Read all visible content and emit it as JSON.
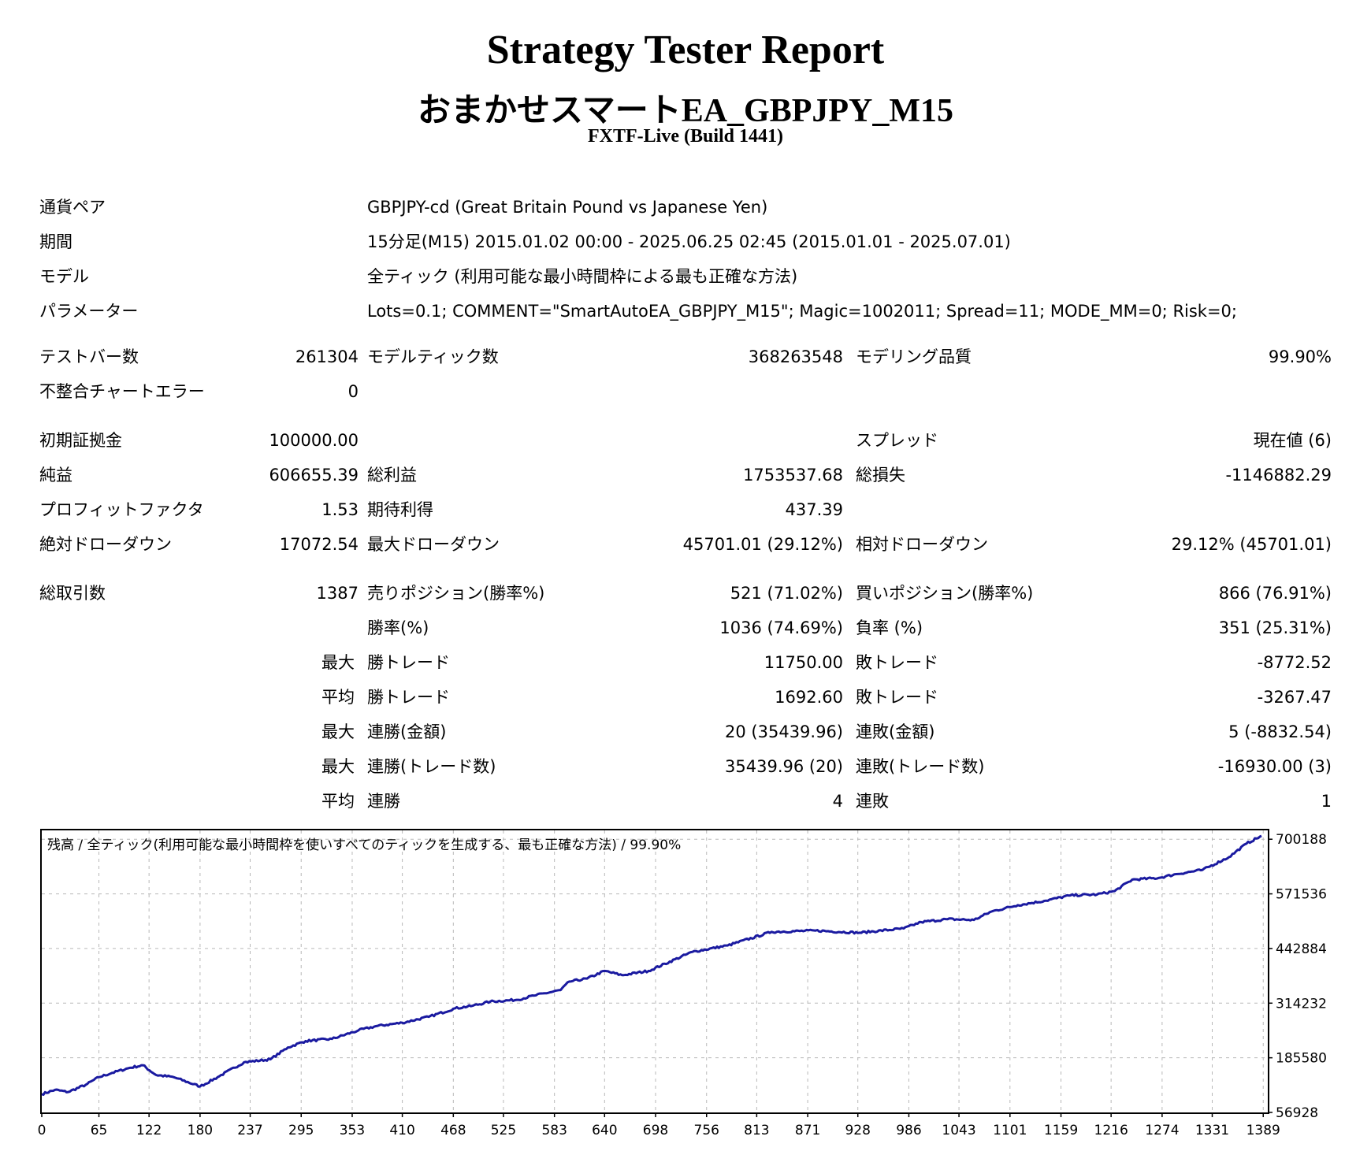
{
  "report": {
    "title": "Strategy Tester Report",
    "subtitle": "おまかせスマートEA_GBPJPY_M15",
    "server": "FXTF-Live (Build 1441)"
  },
  "info": [
    {
      "label": "通貨ペア",
      "value": "GBPJPY-cd (Great Britain Pound vs Japanese Yen)"
    },
    {
      "label": "期間",
      "value": "15分足(M15) 2015.01.02 00:00 - 2025.06.25 02:45 (2015.01.01 - 2025.07.01)"
    },
    {
      "label": "モデル",
      "value": "全ティック (利用可能な最小時間枠による最も正確な方法)"
    },
    {
      "label": "パラメーター",
      "value": "Lots=0.1; COMMENT=\"SmartAutoEA_GBPJPY_M15\"; Magic=1002011; Spread=11; MODE_MM=0; Risk=0;"
    }
  ],
  "stats": {
    "bars_label": "テストバー数",
    "bars": "261304",
    "ticks_label": "モデルティック数",
    "ticks": "368263548",
    "quality_label": "モデリング品質",
    "quality": "99.90%",
    "mismatch_label": "不整合チャートエラー",
    "mismatch": "0",
    "deposit_label": "初期証拠金",
    "deposit": "100000.00",
    "spread_label": "スプレッド",
    "spread": "現在値 (6)",
    "net_label": "純益",
    "net": "606655.39",
    "gross_profit_label": "総利益",
    "gross_profit": "1753537.68",
    "gross_loss_label": "総損失",
    "gross_loss": "-1146882.29",
    "pf_label": "プロフィットファクタ",
    "pf": "1.53",
    "payoff_label": "期待利得",
    "payoff": "437.39",
    "abs_dd_label": "絶対ドローダウン",
    "abs_dd": "17072.54",
    "max_dd_label": "最大ドローダウン",
    "max_dd": "45701.01 (29.12%)",
    "rel_dd_label": "相対ドローダウン",
    "rel_dd": "29.12% (45701.01)",
    "trades_label": "総取引数",
    "trades": "1387",
    "short_label": "売りポジション(勝率%)",
    "short": "521 (71.02%)",
    "long_label": "買いポジション(勝率%)",
    "long": "866 (76.91%)",
    "win_rate_label": "勝率(%)",
    "win_rate": "1036 (74.69%)",
    "loss_rate_label": "負率 (%)",
    "loss_rate": "351 (25.31%)",
    "max_prefix": "最大",
    "avg_prefix": "平均",
    "largest_win_label": "勝トレード",
    "largest_win": "11750.00",
    "largest_loss_label": "敗トレード",
    "largest_loss": "-8772.52",
    "avg_win_label": "勝トレード",
    "avg_win": "1692.60",
    "avg_loss_label": "敗トレード",
    "avg_loss": "-3267.47",
    "max_consec_wins_amt_label": "連勝(金額)",
    "max_consec_wins_amt": "20 (35439.96)",
    "max_consec_losses_amt_label": "連敗(金額)",
    "max_consec_losses_amt": "5 (-8832.54)",
    "max_consec_wins_cnt_label": "連勝(トレード数)",
    "max_consec_wins_cnt": "35439.96 (20)",
    "max_consec_losses_cnt_label": "連敗(トレード数)",
    "max_consec_losses_cnt": "-16930.00 (3)",
    "avg_consec_wins_label": "連勝",
    "avg_consec_wins": "4",
    "avg_consec_losses_label": "連敗",
    "avg_consec_losses": "1"
  },
  "chart_data": {
    "type": "line",
    "title": "残高 / 全ティック(利用可能な最小時間枠を使いすべてのティックを生成する、最も正確な方法) / 99.90%",
    "xlim": [
      0,
      1387
    ],
    "ylim": [
      56928,
      721000
    ],
    "x_ticks": [
      "0",
      "65",
      "122",
      "180",
      "237",
      "295",
      "353",
      "410",
      "468",
      "525",
      "583",
      "640",
      "698",
      "756",
      "813",
      "871",
      "928",
      "986",
      "1043",
      "1101",
      "1159",
      "1216",
      "1274",
      "1331",
      "1389"
    ],
    "y_ticks": [
      "700188",
      "571536",
      "442884",
      "314232",
      "185580",
      "56928"
    ],
    "series": [
      {
        "color": "#1a1aa0",
        "x": [
          0,
          15,
          30,
          50,
          65,
          80,
          100,
          115,
          130,
          150,
          180,
          200,
          230,
          260,
          280,
          300,
          330,
          360,
          380,
          410,
          440,
          470,
          490,
          510,
          540,
          560,
          590,
          600,
          620,
          640,
          660,
          690,
          740,
          780,
          830,
          880,
          930,
          980,
          1000,
          1030,
          1060,
          1080,
          1110,
          1140,
          1170,
          1200,
          1220,
          1240,
          1270,
          1290,
          1320,
          1350,
          1370,
          1387
        ],
        "y": [
          100000,
          110000,
          105000,
          122000,
          140000,
          150000,
          162000,
          168000,
          145000,
          140000,
          118000,
          140000,
          175000,
          182000,
          210000,
          225000,
          230000,
          250000,
          260000,
          268000,
          282000,
          302000,
          308000,
          318000,
          322000,
          332000,
          345000,
          365000,
          372000,
          390000,
          380000,
          390000,
          435000,
          450000,
          482000,
          485000,
          480000,
          490000,
          505000,
          512000,
          510000,
          530000,
          545000,
          555000,
          568000,
          570000,
          578000,
          605000,
          609000,
          618000,
          628000,
          658000,
          690000,
          708000
        ]
      }
    ]
  }
}
